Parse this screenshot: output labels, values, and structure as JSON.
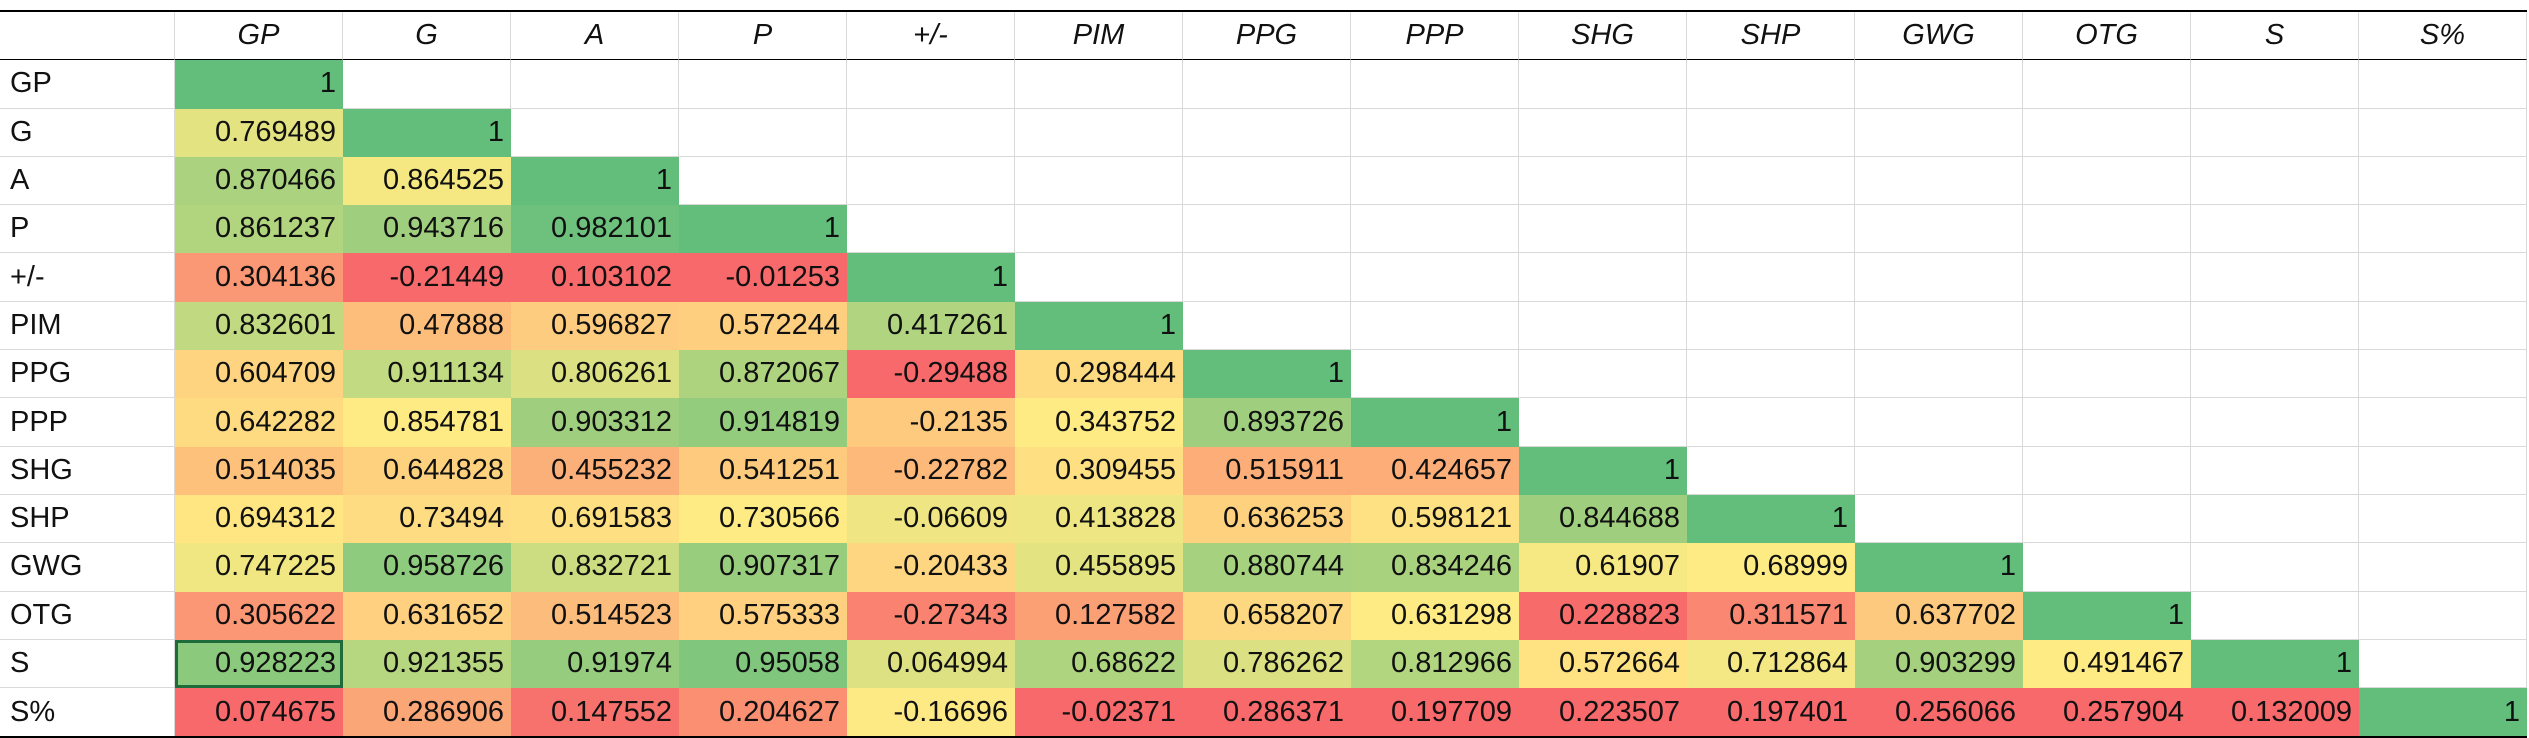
{
  "chart_data": {
    "type": "heatmap",
    "title": "",
    "columns": [
      "GP",
      "G",
      "A",
      "P",
      "+/-",
      "PIM",
      "PPG",
      "PPP",
      "SHG",
      "SHP",
      "GWG",
      "OTG",
      "S",
      "S%"
    ],
    "rows": [
      "GP",
      "G",
      "A",
      "P",
      "+/-",
      "PIM",
      "PPG",
      "PPP",
      "SHG",
      "SHP",
      "GWG",
      "OTG",
      "S",
      "S%"
    ],
    "values": [
      [
        "1"
      ],
      [
        "0.769489",
        "1"
      ],
      [
        "0.870466",
        "0.864525",
        "1"
      ],
      [
        "0.861237",
        "0.943716",
        "0.982101",
        "1"
      ],
      [
        "0.304136",
        "-0.21449",
        "0.103102",
        "-0.01253",
        "1"
      ],
      [
        "0.832601",
        "0.47888",
        "0.596827",
        "0.572244",
        "0.417261",
        "1"
      ],
      [
        "0.604709",
        "0.911134",
        "0.806261",
        "0.872067",
        "-0.29488",
        "0.298444",
        "1"
      ],
      [
        "0.642282",
        "0.854781",
        "0.903312",
        "0.914819",
        "-0.2135",
        "0.343752",
        "0.893726",
        "1"
      ],
      [
        "0.514035",
        "0.644828",
        "0.455232",
        "0.541251",
        "-0.22782",
        "0.309455",
        "0.515911",
        "0.424657",
        "1"
      ],
      [
        "0.694312",
        "0.73494",
        "0.691583",
        "0.730566",
        "-0.06609",
        "0.413828",
        "0.636253",
        "0.598121",
        "0.844688",
        "1"
      ],
      [
        "0.747225",
        "0.958726",
        "0.832721",
        "0.907317",
        "-0.20433",
        "0.455895",
        "0.880744",
        "0.834246",
        "0.61907",
        "0.68999",
        "1"
      ],
      [
        "0.305622",
        "0.631652",
        "0.514523",
        "0.575333",
        "-0.27343",
        "0.127582",
        "0.658207",
        "0.631298",
        "0.228823",
        "0.311571",
        "0.637702",
        "1"
      ],
      [
        "0.928223",
        "0.921355",
        "0.91974",
        "0.95058",
        "0.064994",
        "0.68622",
        "0.786262",
        "0.812966",
        "0.572664",
        "0.712864",
        "0.903299",
        "0.491467",
        "1"
      ],
      [
        "0.074675",
        "0.286906",
        "0.147552",
        "0.204627",
        "-0.16696",
        "-0.02371",
        "0.286371",
        "0.197709",
        "0.223507",
        "0.197401",
        "0.256066",
        "0.257904",
        "0.132009",
        "1"
      ]
    ],
    "color_scale": {
      "low": "#f8696b",
      "mid": "#ffeb84",
      "high": "#63be7b"
    },
    "selected_cell": {
      "row": "S",
      "column": "GP"
    }
  }
}
